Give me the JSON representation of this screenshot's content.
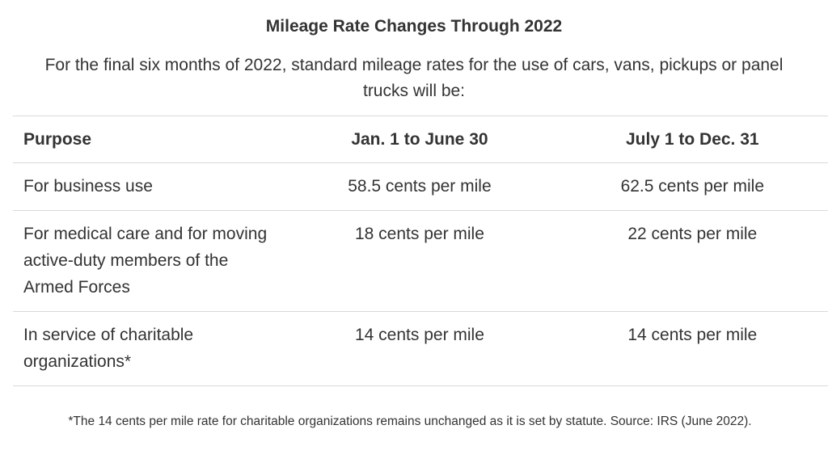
{
  "title": "Mileage Rate Changes Through 2022",
  "subtitle": "For the final six months of 2022, standard mileage rates for the use of cars, vans, pickups or panel trucks will be:",
  "table": {
    "headers": [
      "Purpose",
      "Jan. 1 to June 30",
      "July 1 to Dec. 31"
    ],
    "rows": [
      {
        "purpose": "For business use",
        "jan_june": "58.5 cents per mile",
        "july_dec": "62.5 cents per mile"
      },
      {
        "purpose": "For medical care and for moving active-duty members of the Armed Forces",
        "jan_june": "18 cents per mile",
        "july_dec": "22 cents per mile"
      },
      {
        "purpose": "In service of charitable organizations*",
        "jan_june": "14 cents per mile",
        "july_dec": "14 cents per mile"
      }
    ]
  },
  "footnote": "*The 14 cents per mile rate for charitable organizations remains unchanged as it is set by statute. Source: IRS (June 2022)."
}
